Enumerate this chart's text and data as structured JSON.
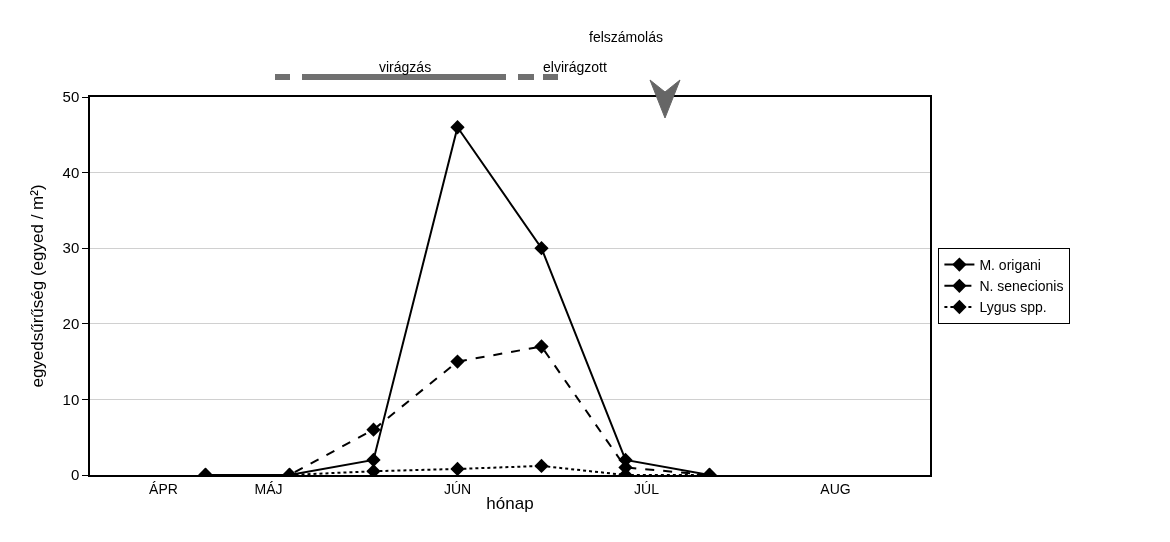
{
  "chart_data": {
    "type": "line",
    "xlabel": "hónap",
    "ylabel": "egyedsűrűség (egyed / m²)",
    "categories": [
      null,
      null,
      null,
      "ÁPR",
      null,
      null,
      null,
      null,
      "MÁJ",
      null,
      null,
      null,
      null,
      null,
      null,
      null,
      null,
      "JÚN",
      null,
      null,
      null,
      null,
      null,
      null,
      null,
      null,
      "JÚL",
      null,
      null,
      null,
      null,
      null,
      null,
      null,
      null,
      "AUG",
      null,
      null,
      null,
      null
    ],
    "series": [
      {
        "name": "M. origani",
        "color": "#000000",
        "line_style": "solid",
        "values": [
          null,
          null,
          null,
          null,
          null,
          0,
          null,
          null,
          null,
          0,
          null,
          null,
          null,
          2,
          null,
          null,
          null,
          46,
          null,
          null,
          null,
          30,
          null,
          null,
          null,
          2,
          null,
          null,
          null,
          0,
          null,
          null,
          null,
          null,
          null,
          null,
          null,
          null,
          null,
          null
        ]
      },
      {
        "name": "N. senecionis",
        "color": "#000000",
        "line_style": "dashed",
        "values": [
          null,
          null,
          null,
          null,
          null,
          0,
          null,
          null,
          null,
          0,
          null,
          null,
          null,
          6,
          null,
          null,
          null,
          15,
          null,
          null,
          null,
          17,
          null,
          null,
          null,
          1,
          null,
          null,
          null,
          0,
          null,
          null,
          null,
          null,
          null,
          null,
          null,
          null,
          null,
          null
        ]
      },
      {
        "name": "Lygus spp.",
        "color": "#000000",
        "line_style": "dotted",
        "values": [
          null,
          null,
          null,
          null,
          null,
          0,
          null,
          null,
          null,
          0,
          null,
          null,
          null,
          0.5,
          null,
          null,
          null,
          0.8,
          null,
          null,
          null,
          1.2,
          null,
          null,
          null,
          0,
          null,
          null,
          null,
          0,
          null,
          null,
          null,
          null,
          null,
          null,
          null,
          null,
          null,
          null
        ]
      }
    ],
    "ylim": [
      0,
      50
    ],
    "yticks": [
      0,
      10,
      20,
      30,
      40,
      50
    ],
    "annotations": [
      "virágzás",
      "elvirágzott",
      "felszámolás"
    ],
    "grid": "y",
    "legend": "right",
    "marker": "diamond"
  }
}
